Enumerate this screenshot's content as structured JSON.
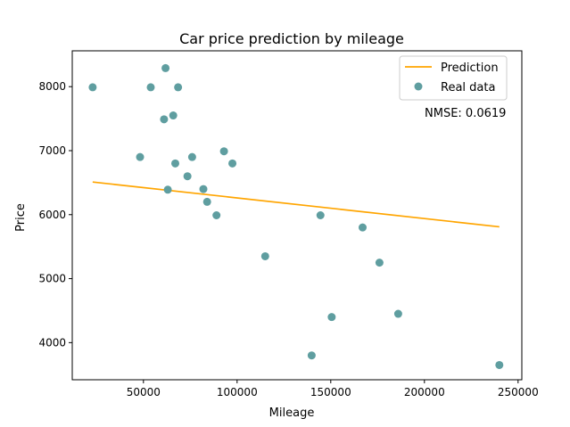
{
  "chart_data": {
    "type": "scatter",
    "title": "Car price prediction by mileage",
    "xlabel": "Mileage",
    "ylabel": "Price",
    "xlim": [
      12000,
      252000
    ],
    "ylim": [
      3420,
      8560
    ],
    "xticks": [
      50000,
      100000,
      150000,
      200000,
      250000
    ],
    "yticks": [
      4000,
      5000,
      6000,
      7000,
      8000
    ],
    "grid": false,
    "legend_position": "top-right",
    "colors": {
      "prediction": "#ffa500",
      "real_data": "#5f9ea0"
    },
    "series": [
      {
        "name": "Real data",
        "kind": "scatter",
        "x": [
          22900,
          48200,
          53900,
          61000,
          61800,
          63000,
          65900,
          67000,
          68500,
          73500,
          76000,
          82000,
          84000,
          89000,
          93000,
          97500,
          115000,
          139800,
          144500,
          150500,
          167000,
          176000,
          186000,
          240000
        ],
        "y": [
          7990,
          6900,
          7990,
          7490,
          8290,
          6390,
          7550,
          6800,
          7990,
          6600,
          6900,
          6400,
          6200,
          5990,
          6990,
          6800,
          5350,
          3800,
          5990,
          4400,
          5800,
          5250,
          4450,
          3650
        ]
      },
      {
        "name": "Prediction",
        "kind": "line",
        "x": [
          22900,
          240000
        ],
        "y": [
          6510,
          5810
        ]
      }
    ],
    "annotation": "NMSE: 0.0619"
  }
}
